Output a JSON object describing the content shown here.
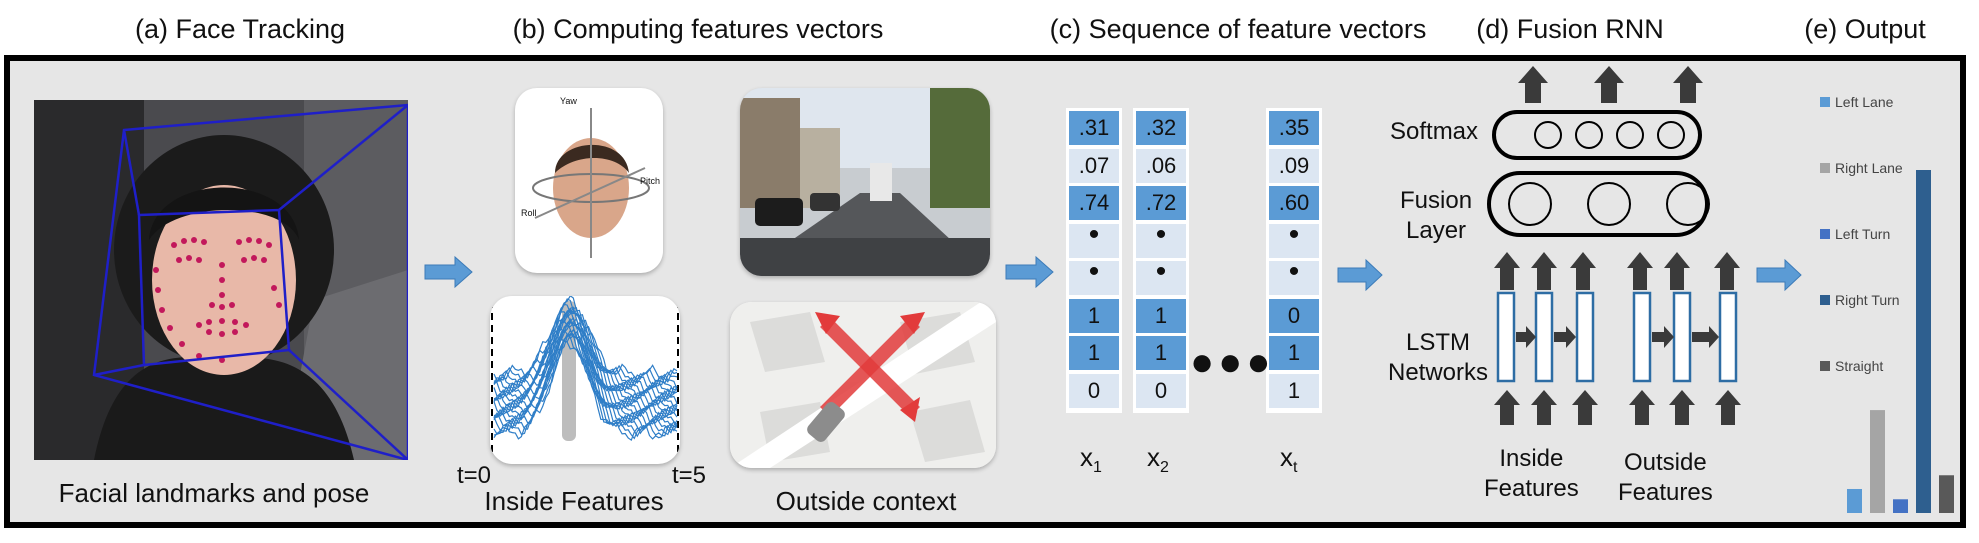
{
  "headers": {
    "a": "(a) Face Tracking",
    "b": "(b) Computing features vectors",
    "c": "(c) Sequence of feature vectors",
    "d": "(d) Fusion RNN",
    "e": "(e) Output"
  },
  "labels": {
    "face_caption": "Facial landmarks and pose",
    "inside_features": "Inside Features",
    "t_start": "t=0",
    "t_end": "t=5",
    "outside_context": "Outside context",
    "head_axes": [
      "Yaw",
      "Pitch",
      "Roll"
    ]
  },
  "vectors": [
    {
      "label": "x",
      "sub": "1",
      "values": [
        ".31",
        ".07",
        ".74",
        "•",
        "•",
        "1",
        "1",
        "0"
      ]
    },
    {
      "label": "x",
      "sub": "2",
      "values": [
        ".32",
        ".06",
        ".72",
        "•",
        "•",
        "1",
        "1",
        "0"
      ]
    },
    {
      "label": "x",
      "sub": "t",
      "values": [
        ".35",
        ".09",
        ".60",
        "•",
        "•",
        "0",
        "1",
        "1"
      ]
    }
  ],
  "rnn": {
    "softmax": "Softmax",
    "fusion_layer": "Fusion\nLayer",
    "lstm": "LSTM\nNetworks",
    "inside": "Inside\nFeatures",
    "outside": "Outside\nFeatures"
  },
  "chart_data": {
    "type": "bar",
    "title": "(e) Output",
    "categories": [
      "Left Lane",
      "Right Lane",
      "Left Turn",
      "Right Turn",
      "Straight"
    ],
    "values": [
      0.07,
      0.3,
      0.04,
      1.0,
      0.11
    ],
    "colors": [
      "#5b9bd5",
      "#a5a5a5",
      "#4472c4",
      "#2e5f8f",
      "#595959"
    ],
    "ylim": [
      0,
      1
    ],
    "legend": "top-left"
  },
  "colors": {
    "panel_bg": "#e6e6e6",
    "arrow_blue": "#5b9bd5",
    "cell_dark": "#5b9bd5",
    "cell_light": "#dce6f2",
    "landmark": "#c2185b",
    "face_box": "#1f1fc8"
  }
}
